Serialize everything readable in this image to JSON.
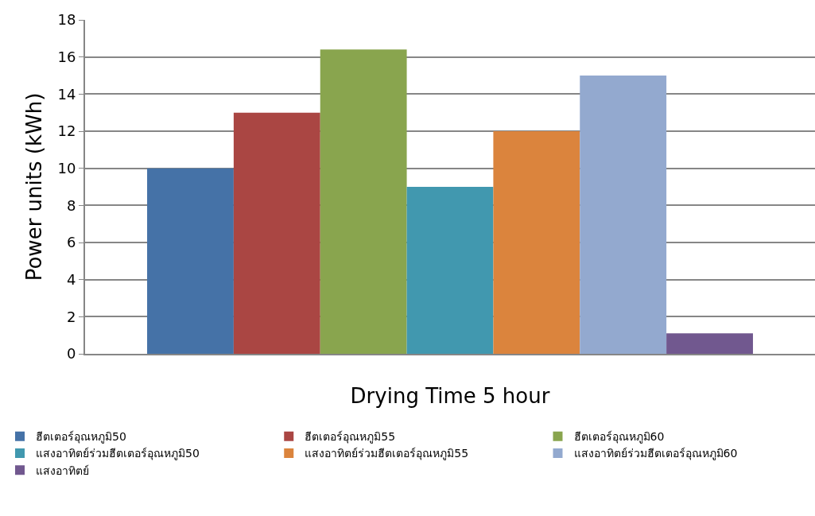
{
  "chart_data": {
    "type": "bar",
    "xlabel": "Drying Time 5 hour",
    "ylabel": "Power units (kWh)",
    "categories": [
      null
    ],
    "series": [
      {
        "name": "ฮีตเตอร์อุณหภูมิ50",
        "color": "#4572a7",
        "values": [
          10
        ]
      },
      {
        "name": "ฮีตเตอร์อุณหภูมิ55",
        "color": "#aa4643",
        "values": [
          13
        ]
      },
      {
        "name": "ฮีตเตอร์อุณหภูมิ60",
        "color": "#89a54e",
        "values": [
          16.4
        ]
      },
      {
        "name": "แสงอาทิตย์ร่วมฮีตเตอร์อุณหภูมิ50",
        "color": "#4198af",
        "values": [
          9
        ]
      },
      {
        "name": "แสงอาทิตย์ร่วมฮีตเตอร์อุณหภูมิ55",
        "color": "#db843d",
        "values": [
          12
        ]
      },
      {
        "name": "แสงอาทิตย์ร่วมฮีตเตอร์อุณหภูมิ60",
        "color": "#93a9cf",
        "values": [
          15
        ]
      },
      {
        "name": "แสงอาทิตย์",
        "color": "#71588f",
        "values": [
          1.1
        ]
      }
    ],
    "ylim": [
      0,
      18
    ],
    "yticks": [
      0,
      2,
      4,
      6,
      8,
      10,
      12,
      14,
      16,
      18
    ],
    "grid": "y",
    "legend": "bottom"
  }
}
